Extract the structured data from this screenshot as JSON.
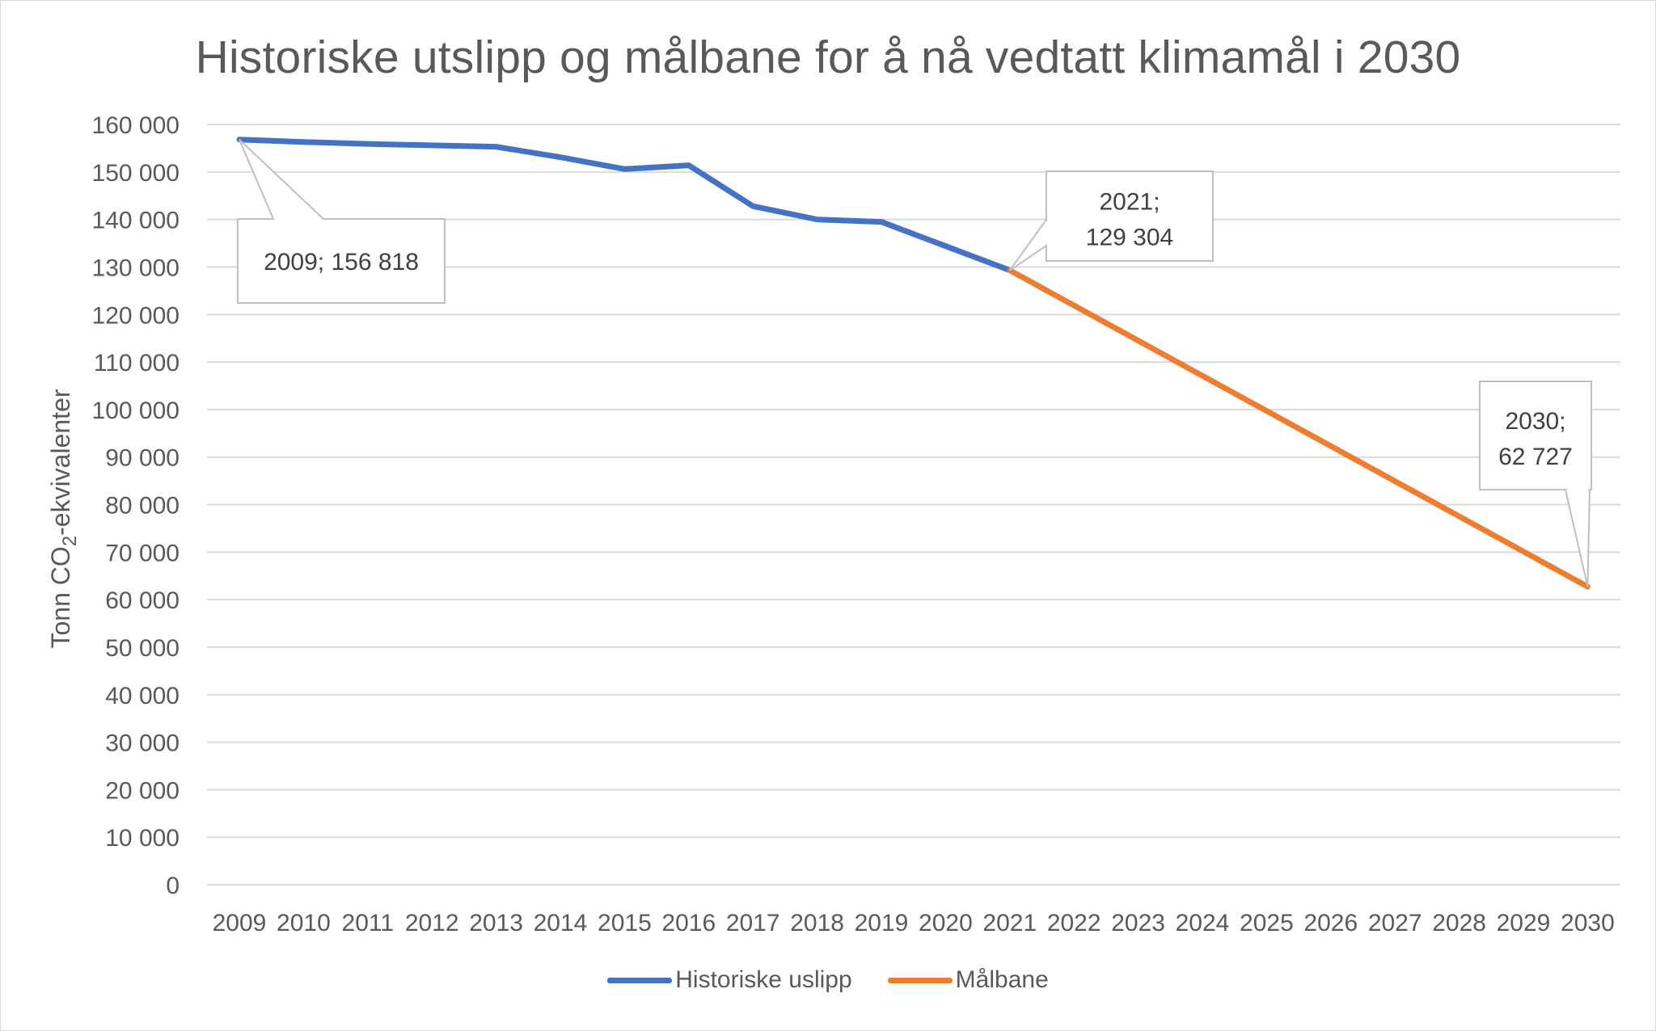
{
  "chart_data": {
    "type": "line",
    "title": "Historiske utslipp og målbane for å nå vedtatt klimamål i 2030",
    "ylabel_main": "Tonn CO",
    "ylabel_sub": "2",
    "ylabel_rest": "-ekvivalenter",
    "xlabel": "",
    "ylim": [
      0,
      160000
    ],
    "y_ticks": [
      {
        "value": 0,
        "label": "0"
      },
      {
        "value": 10000,
        "label": "10 000"
      },
      {
        "value": 20000,
        "label": "20 000"
      },
      {
        "value": 30000,
        "label": "30 000"
      },
      {
        "value": 40000,
        "label": "40 000"
      },
      {
        "value": 50000,
        "label": "50 000"
      },
      {
        "value": 60000,
        "label": "60 000"
      },
      {
        "value": 70000,
        "label": "70 000"
      },
      {
        "value": 80000,
        "label": "80 000"
      },
      {
        "value": 90000,
        "label": "90 000"
      },
      {
        "value": 100000,
        "label": "100 000"
      },
      {
        "value": 110000,
        "label": "110 000"
      },
      {
        "value": 120000,
        "label": "120 000"
      },
      {
        "value": 130000,
        "label": "130 000"
      },
      {
        "value": 140000,
        "label": "140 000"
      },
      {
        "value": 150000,
        "label": "150 000"
      },
      {
        "value": 160000,
        "label": "160 000"
      }
    ],
    "categories": [
      "2009",
      "2010",
      "2011",
      "2012",
      "2013",
      "2014",
      "2015",
      "2016",
      "2017",
      "2018",
      "2019",
      "2020",
      "2021",
      "2022",
      "2023",
      "2024",
      "2025",
      "2026",
      "2027",
      "2028",
      "2029",
      "2030"
    ],
    "grid": true,
    "legend_position": "bottom",
    "series": [
      {
        "name": "Historiske uslipp",
        "color": "#4472c4",
        "values": [
          156818,
          156300,
          155900,
          155600,
          155300,
          153100,
          150600,
          151400,
          142800,
          140000,
          139500,
          134400,
          129304,
          null,
          null,
          null,
          null,
          null,
          null,
          null,
          null,
          null
        ]
      },
      {
        "name": "Målbane",
        "color": "#ed7d31",
        "values": [
          null,
          null,
          null,
          null,
          null,
          null,
          null,
          null,
          null,
          null,
          null,
          null,
          129304,
          121907,
          114509,
          107111,
          99714,
          92317,
          84919,
          77522,
          70124,
          62727
        ]
      }
    ],
    "annotations": [
      {
        "line1": "2009; 156 818",
        "line2": ""
      },
      {
        "line1": "2021;",
        "line2": "129 304"
      },
      {
        "line1": "2030;",
        "line2": "62 727"
      }
    ]
  }
}
